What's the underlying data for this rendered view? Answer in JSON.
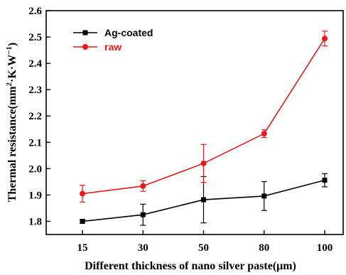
{
  "chart_data": {
    "type": "line",
    "title": "",
    "xlabel": "Different thickness of nano silver paste(μm)",
    "ylabel_parts": {
      "pre": "Thermal resistance(mm",
      "sup1": "2",
      "mid": "·K·W",
      "sup2": "−1",
      "post": ")"
    },
    "categories": [
      "15",
      "30",
      "50",
      "80",
      "100"
    ],
    "ylim": [
      1.75,
      2.6
    ],
    "yticks": [
      1.8,
      1.9,
      2.0,
      2.1,
      2.2,
      2.3,
      2.4,
      2.5,
      2.6
    ],
    "ytick_labels": [
      "1.8",
      "1.9",
      "2.0",
      "2.1",
      "2.2",
      "2.3",
      "2.4",
      "2.5",
      "2.6"
    ],
    "legend_position": "top-left",
    "grid": false,
    "series": [
      {
        "name": "Ag-coated",
        "color": "#000000",
        "marker": "square",
        "values": [
          1.8,
          1.825,
          1.882,
          1.896,
          1.956
        ],
        "errors": [
          0.007,
          0.04,
          0.088,
          0.055,
          0.025
        ]
      },
      {
        "name": "raw",
        "color": "#e8191c",
        "marker": "circle",
        "values": [
          1.905,
          1.934,
          2.02,
          2.133,
          2.494
        ],
        "errors": [
          0.032,
          0.02,
          0.072,
          0.015,
          0.028
        ]
      }
    ]
  }
}
